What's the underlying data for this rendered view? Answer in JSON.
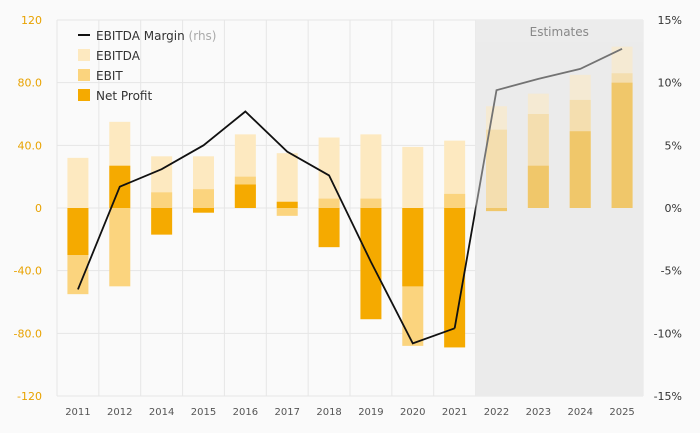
{
  "chart_data": {
    "type": "bar",
    "categories": [
      "2011",
      "2012",
      "2014",
      "2015",
      "2016",
      "2017",
      "2018",
      "2019",
      "2020",
      "2021",
      "2022",
      "2023",
      "2024",
      "2025"
    ],
    "estimate_from_index": 10,
    "estimates_label": "Estimates",
    "series": [
      {
        "name": "EBITDA",
        "color": "#fde9c0",
        "values": [
          32,
          55,
          33,
          33,
          47,
          35,
          45,
          47,
          39,
          43,
          65,
          73,
          85,
          103
        ]
      },
      {
        "name": "EBIT",
        "color": "#fbd47e",
        "values": [
          -55,
          -50,
          10,
          12,
          20,
          -5,
          6,
          6,
          -88,
          9,
          50,
          60,
          69,
          86
        ]
      },
      {
        "name": "Net Profit",
        "color": "#f5aa00",
        "values": [
          -30,
          27,
          -17,
          -3,
          15,
          4,
          -25,
          -71,
          -50,
          -89,
          -2,
          27,
          49,
          80
        ]
      },
      {
        "name": "EBITDA Margin",
        "name_suffix": "(rhs)",
        "color": "#111111",
        "axis": "right",
        "values": [
          -6.5,
          1.7,
          3.1,
          5.0,
          7.7,
          4.5,
          2.6,
          -4.3,
          -10.8,
          -9.6,
          9.4,
          10.3,
          11.1,
          12.7
        ]
      }
    ],
    "yaxis_left": {
      "ticks": [
        "120",
        "80.0",
        "40.0",
        "0",
        "-40.0",
        "-80.0",
        "-120"
      ],
      "min": -120,
      "max": 120
    },
    "yaxis_right": {
      "ticks": [
        "15%",
        "10%",
        "5%",
        "0%",
        "-5%",
        "-10%",
        "-15%"
      ],
      "min": -15,
      "max": 15
    },
    "legend": {
      "placement": "top-left"
    },
    "colors": {
      "left_axis": "#e8a200",
      "estimate_band": "#ececec"
    }
  }
}
